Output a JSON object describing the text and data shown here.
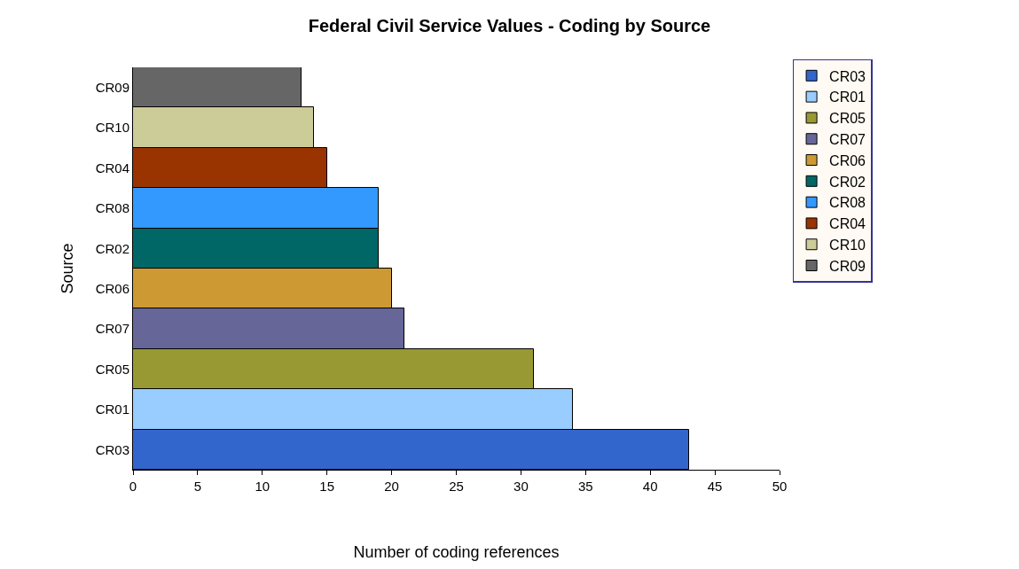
{
  "chart_data": {
    "type": "bar",
    "orientation": "horizontal",
    "title": "Federal Civil Service Values - Coding by Source",
    "xlabel": "Number of coding references",
    "ylabel": "Source",
    "categories": [
      "CR09",
      "CR10",
      "CR04",
      "CR08",
      "CR02",
      "CR06",
      "CR07",
      "CR05",
      "CR01",
      "CR03"
    ],
    "series": [
      {
        "name": "CR03",
        "color": "#3366cc",
        "values": [
          null,
          null,
          null,
          null,
          null,
          null,
          null,
          null,
          null,
          43
        ]
      },
      {
        "name": "CR01",
        "color": "#99ccff",
        "values": [
          null,
          null,
          null,
          null,
          null,
          null,
          null,
          null,
          34,
          null
        ]
      },
      {
        "name": "CR05",
        "color": "#999933",
        "values": [
          null,
          null,
          null,
          null,
          null,
          null,
          null,
          31,
          null,
          null
        ]
      },
      {
        "name": "CR07",
        "color": "#666699",
        "values": [
          null,
          null,
          null,
          null,
          null,
          null,
          21,
          null,
          null,
          null
        ]
      },
      {
        "name": "CR06",
        "color": "#cc9933",
        "values": [
          null,
          null,
          null,
          null,
          null,
          20,
          null,
          null,
          null,
          null
        ]
      },
      {
        "name": "CR02",
        "color": "#006666",
        "values": [
          null,
          null,
          null,
          null,
          19,
          null,
          null,
          null,
          null,
          null
        ]
      },
      {
        "name": "CR08",
        "color": "#3399ff",
        "values": [
          null,
          null,
          null,
          19,
          null,
          null,
          null,
          null,
          null,
          null
        ]
      },
      {
        "name": "CR04",
        "color": "#993300",
        "values": [
          null,
          null,
          15,
          null,
          null,
          null,
          null,
          null,
          null,
          null
        ]
      },
      {
        "name": "CR10",
        "color": "#cccc99",
        "values": [
          null,
          14,
          null,
          null,
          null,
          null,
          null,
          null,
          null,
          null
        ]
      },
      {
        "name": "CR09",
        "color": "#666666",
        "values": [
          13,
          null,
          null,
          null,
          null,
          null,
          null,
          null,
          null,
          null
        ]
      }
    ],
    "xlim": [
      0,
      50
    ],
    "xticks": [
      0,
      5,
      10,
      15,
      20,
      25,
      30,
      35,
      40,
      45,
      50
    ],
    "grid": false,
    "legend": "right"
  }
}
